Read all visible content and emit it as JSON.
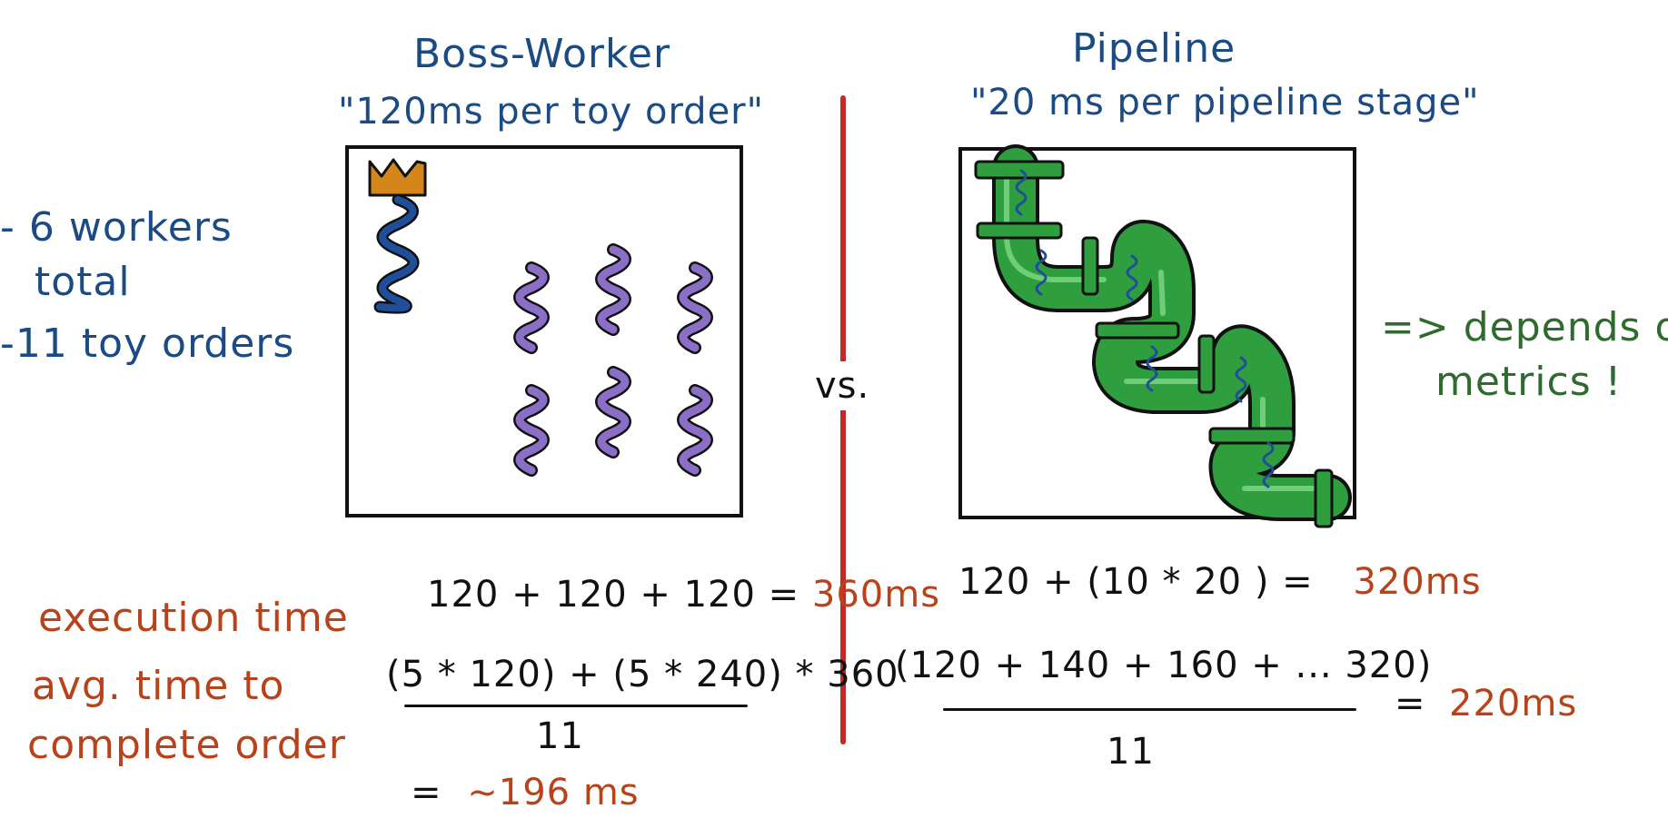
{
  "boss_worker": {
    "title": "Boss-Worker",
    "subtitle": "\"120ms per toy order\"",
    "eq1_lhs": "120 + 120 + 120 =",
    "eq1_result": "360ms",
    "avg_numerator": "(5 * 120) + (5 * 240) * 360",
    "avg_denominator": "11",
    "avg_result_eq": "=",
    "avg_result": "~196 ms",
    "workers": 6
  },
  "pipeline": {
    "title": "Pipeline",
    "subtitle": "\"20 ms per pipeline stage\"",
    "eq1_lhs": "120 +  (10 * 20 ) =",
    "eq1_result": "320ms",
    "avg_numerator": "(120 + 140 + 160 + ...  320)",
    "avg_denominator": "11",
    "avg_result_eq": "=",
    "avg_result": "220ms",
    "stages": 6
  },
  "vs_label": "vs.",
  "left_notes": [
    "- 6 workers",
    "total",
    "-11 toy orders"
  ],
  "row_labels": {
    "execution_time": "execution time",
    "avg_time_line1": "avg. time to",
    "avg_time_line2": "complete order"
  },
  "right_note": {
    "line1": "=> depends on",
    "line2": "metrics !"
  },
  "colors": {
    "blue_ink": "#1a4b84",
    "brown_ink": "#b8431a",
    "green_ink": "#2f6a2f",
    "divider": "#c62828",
    "boss_thread": "#1f4f9a",
    "worker_thread": "#8b6fc7",
    "crown": "#d4861a",
    "pipe": "#2e9e3e"
  }
}
